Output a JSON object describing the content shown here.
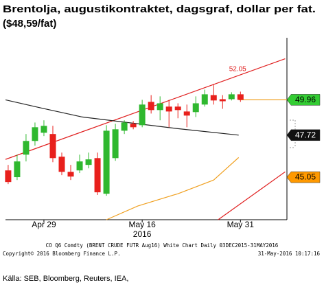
{
  "chart_data": {
    "type": "candlestick",
    "title": "Brentolja, augustikontraktet, dagsgraf, dollar per fat.",
    "subtitle": "($48,59/fat)",
    "categories": [
      null,
      null,
      null,
      null,
      "Apr 29",
      null,
      null,
      null,
      null,
      null,
      null,
      null,
      null,
      null,
      null,
      "May 16",
      null,
      null,
      null,
      null,
      null,
      null,
      null,
      null,
      null,
      null,
      "May 31"
    ],
    "x_sublabel": "2016",
    "open": [
      45.48,
      45.05,
      46.48,
      47.35,
      47.87,
      47.79,
      46.35,
      45.39,
      45.48,
      45.83,
      46.26,
      44.0,
      46.26,
      48.0,
      48.44,
      48.35,
      49.83,
      49.31,
      49.53,
      49.53,
      49.22,
      49.18,
      49.66,
      50.26,
      50.0,
      50.0,
      50.31
    ],
    "high": [
      45.83,
      46.48,
      47.79,
      48.52,
      48.66,
      48.31,
      46.61,
      45.83,
      46.48,
      46.61,
      46.61,
      48.35,
      48.44,
      48.66,
      48.61,
      49.96,
      50.26,
      50.18,
      49.96,
      49.74,
      49.66,
      50.18,
      50.61,
      50.96,
      50.26,
      50.44,
      50.48
    ],
    "low": [
      44.61,
      44.87,
      46.05,
      47.05,
      47.66,
      46.0,
      45.18,
      44.87,
      45.31,
      45.61,
      43.92,
      43.87,
      46.09,
      47.79,
      48.09,
      48.22,
      49.09,
      48.66,
      48.22,
      48.79,
      48.22,
      48.87,
      49.53,
      49.66,
      49.39,
      49.92,
      49.83
    ],
    "close": [
      44.74,
      46.05,
      47.35,
      48.22,
      48.31,
      46.26,
      45.39,
      45.09,
      46.05,
      46.18,
      44.09,
      48.0,
      48.09,
      48.52,
      48.22,
      49.66,
      49.31,
      49.74,
      49.22,
      49.31,
      48.96,
      49.74,
      50.31,
      49.92,
      49.87,
      50.31,
      49.96
    ],
    "up_color": "#2fb82f",
    "down_color": "#e8201c",
    "xlim": [
      -0.3,
      31.2
    ],
    "ylim": [
      42.35,
      53.9
    ],
    "lines": [
      {
        "color": "#e02020",
        "x": [
          -0.3,
          31
        ],
        "values": [
          46.18,
          52.57
        ]
      },
      {
        "color": "#e02020",
        "x": [
          23.5,
          31
        ],
        "values": [
          42.35,
          45.39
        ]
      },
      {
        "color": "#222222",
        "x": [
          -0.3,
          3.7,
          8.3,
          14.5,
          19,
          25.8
        ],
        "values": [
          49.96,
          49.44,
          48.87,
          48.44,
          48.13,
          47.72
        ]
      },
      {
        "color": "#f0a020",
        "x": [
          11,
          14.5,
          19,
          23,
          25.8
        ],
        "values": [
          42.35,
          43.22,
          44.0,
          44.87,
          46.3
        ]
      },
      {
        "color": "#f0a020",
        "x": [
          25.8,
          31.2
        ],
        "values": [
          49.96,
          49.96
        ]
      }
    ],
    "channel_label": 52.05,
    "price_labels": [
      {
        "value": 49.96,
        "color": "#33cc33",
        "text_color": "#000000"
      },
      {
        "value": 47.72,
        "color": "#111111",
        "text_color": "#ffffff"
      },
      {
        "value": 45.05,
        "color": "#ff9900",
        "text_color": "#000000"
      }
    ]
  },
  "footer": {
    "line1": "CO Q6 Comdty (BRENT CRUDE FUTR Aug16) White Chart Daily 03DEC2015-31MAY2016",
    "copyright": "Copyright© 2016 Bloomberg Finance L.P.",
    "timestamp": "31-May-2016 10:17:16",
    "source": "Källa: SEB, Bloomberg, Reuters, IEA,"
  }
}
